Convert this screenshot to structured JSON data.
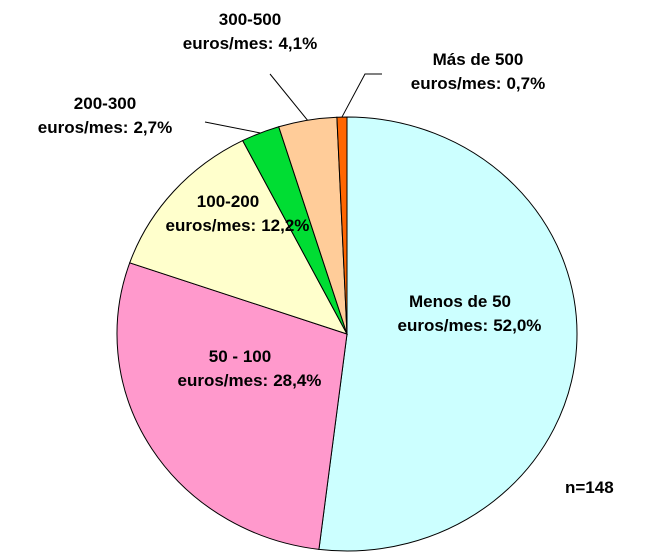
{
  "chart_data": {
    "type": "pie",
    "categories": [
      "Menos de 50 euros/mes:",
      "50 - 100 euros/mes:",
      "100-200 euros/mes:",
      "200-300 euros/mes:",
      "300-500 euros/mes:",
      "Más de 500 euros/mes:"
    ],
    "values": [
      52.0,
      28.4,
      12.2,
      2.7,
      4.1,
      0.7
    ],
    "value_labels": [
      "52,0%",
      "28,4%",
      "12,2%",
      "2,7%",
      "4,1%",
      "0,7%"
    ],
    "colors": [
      "#ccffff",
      "#ff99cc",
      "#ffffcc",
      "#00dd33",
      "#ffcc99",
      "#ff6600"
    ],
    "annotation": "n=148"
  }
}
